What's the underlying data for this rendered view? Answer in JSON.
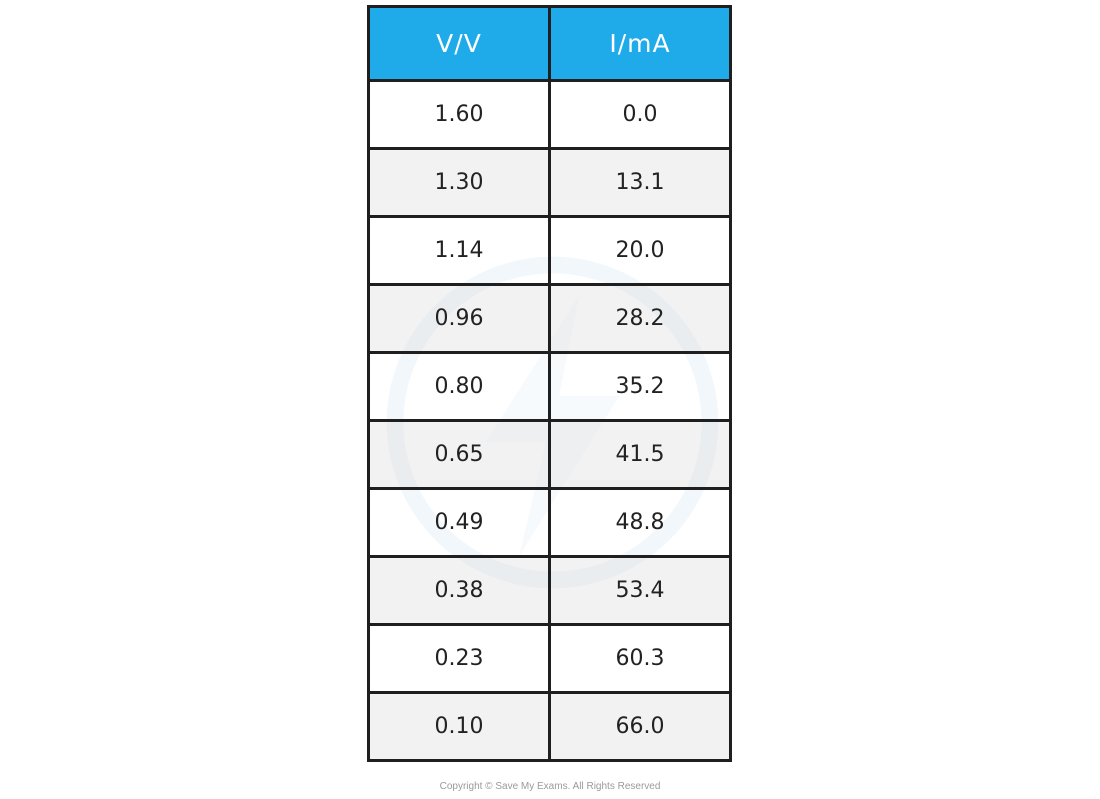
{
  "chart_data": {
    "type": "table",
    "columns": [
      "V/V",
      "I/mA"
    ],
    "rows": [
      [
        "1.60",
        "0.0"
      ],
      [
        "1.30",
        "13.1"
      ],
      [
        "1.14",
        "20.0"
      ],
      [
        "0.96",
        "28.2"
      ],
      [
        "0.80",
        "35.2"
      ],
      [
        "0.65",
        "41.5"
      ],
      [
        "0.49",
        "48.8"
      ],
      [
        "0.38",
        "53.4"
      ],
      [
        "0.23",
        "60.3"
      ],
      [
        "0.10",
        "66.0"
      ]
    ]
  },
  "colors": {
    "header_bg": "#1fabe9",
    "header_text": "#ffffff",
    "alt_row_bg": "#ececec"
  },
  "footer": {
    "copyright": "Copyright © Save My Exams. All Rights Reserved"
  }
}
